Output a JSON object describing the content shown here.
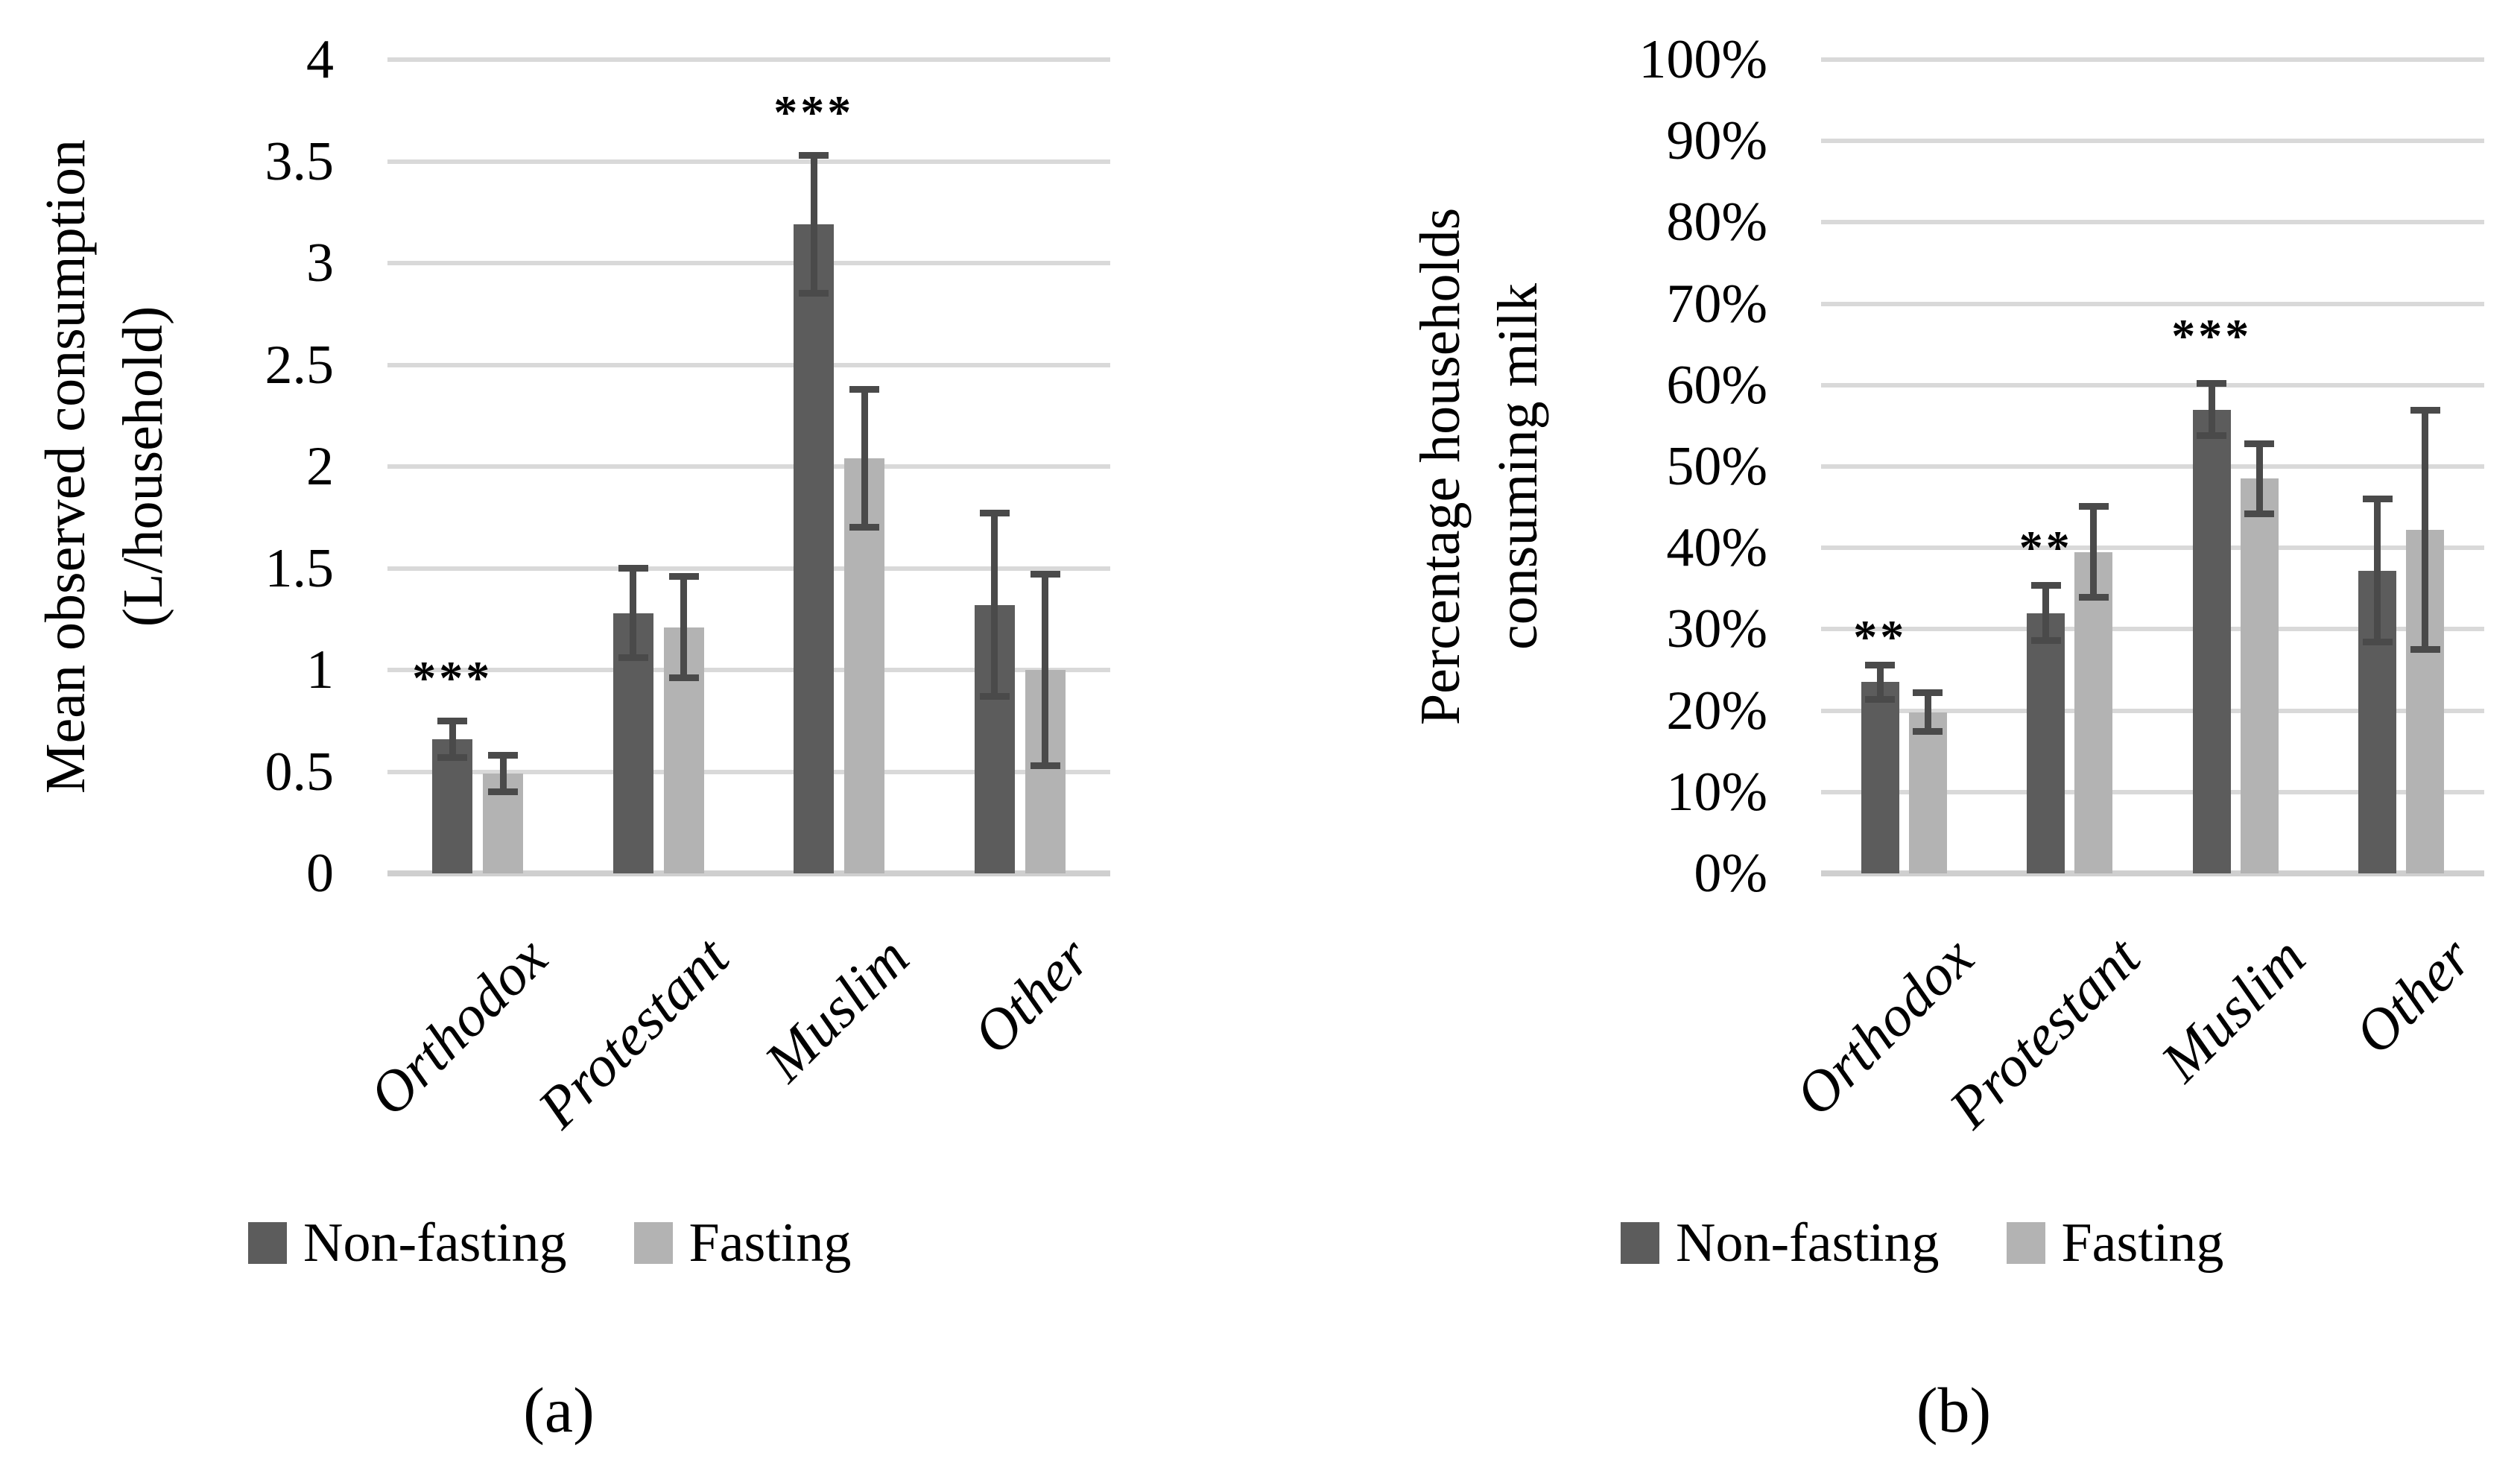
{
  "figure": {
    "captions": {
      "a": "(a)",
      "b": "(b)"
    },
    "colors": {
      "non_fasting": "#5c5c5c",
      "fasting": "#b3b3b3",
      "error_bar": "#4a4a4a",
      "gridline": "#d9d9d9",
      "axis_line": "#cfcfcf",
      "text": "#000000"
    }
  },
  "chart_data": [
    {
      "id": "a",
      "type": "bar",
      "title": "",
      "xlabel": "",
      "ylabel": "Mean observed consumption (L/household)",
      "ylabel_lines": [
        "Mean observed consumption",
        "(L/household)"
      ],
      "categories": [
        "Orthodox",
        "Protestant",
        "Muslim",
        "Other"
      ],
      "series": [
        {
          "name": "Non-fasting",
          "values": [
            0.66,
            1.28,
            3.19,
            1.32
          ],
          "errors": [
            0.09,
            0.22,
            0.34,
            0.45
          ]
        },
        {
          "name": "Fasting",
          "values": [
            0.49,
            1.21,
            2.04,
            1.0
          ],
          "errors": [
            0.09,
            0.25,
            0.34,
            0.47
          ]
        }
      ],
      "ylim": [
        0,
        4
      ],
      "ytick_step": 0.5,
      "yticks": [
        "0",
        "0.5",
        "1",
        "1.5",
        "2",
        "2.5",
        "3",
        "3.5",
        "4"
      ],
      "grid": true,
      "legend_position": "bottom",
      "annotations": [
        {
          "text": "***",
          "category": "Orthodox",
          "category_index": 0,
          "series": "Non-fasting",
          "y": 0.96
        },
        {
          "text": "***",
          "category": "Muslim",
          "category_index": 2,
          "series": "Non-fasting",
          "y": 3.74
        }
      ]
    },
    {
      "id": "b",
      "type": "bar",
      "title": "",
      "xlabel": "",
      "ylabel": "Percentage households consuming milk",
      "ylabel_lines": [
        "Percentage households",
        "consuming milk"
      ],
      "categories": [
        "Orthodox",
        "Protestant",
        "Muslim",
        "Other"
      ],
      "series": [
        {
          "name": "Non-fasting",
          "values": [
            23.5,
            32.0,
            57.0,
            37.2
          ],
          "errors": [
            2.1,
            3.4,
            3.2,
            8.8
          ]
        },
        {
          "name": "Fasting",
          "values": [
            19.8,
            39.5,
            48.5,
            42.2
          ],
          "errors": [
            2.4,
            5.6,
            4.3,
            14.7
          ]
        }
      ],
      "ylim": [
        0,
        100
      ],
      "ytick_step": 10,
      "yticks": [
        "0%",
        "10%",
        "20%",
        "30%",
        "40%",
        "50%",
        "60%",
        "70%",
        "80%",
        "90%",
        "100%"
      ],
      "grid": true,
      "legend_position": "bottom",
      "annotations": [
        {
          "text": "**",
          "category": "Orthodox",
          "category_index": 0,
          "series": "Non-fasting",
          "y": 29
        },
        {
          "text": "**",
          "category": "Protestant",
          "category_index": 1,
          "series": "Non-fasting",
          "y": 40
        },
        {
          "text": "***",
          "category": "Muslim",
          "category_index": 2,
          "series": "Non-fasting",
          "y": 66
        }
      ]
    }
  ]
}
